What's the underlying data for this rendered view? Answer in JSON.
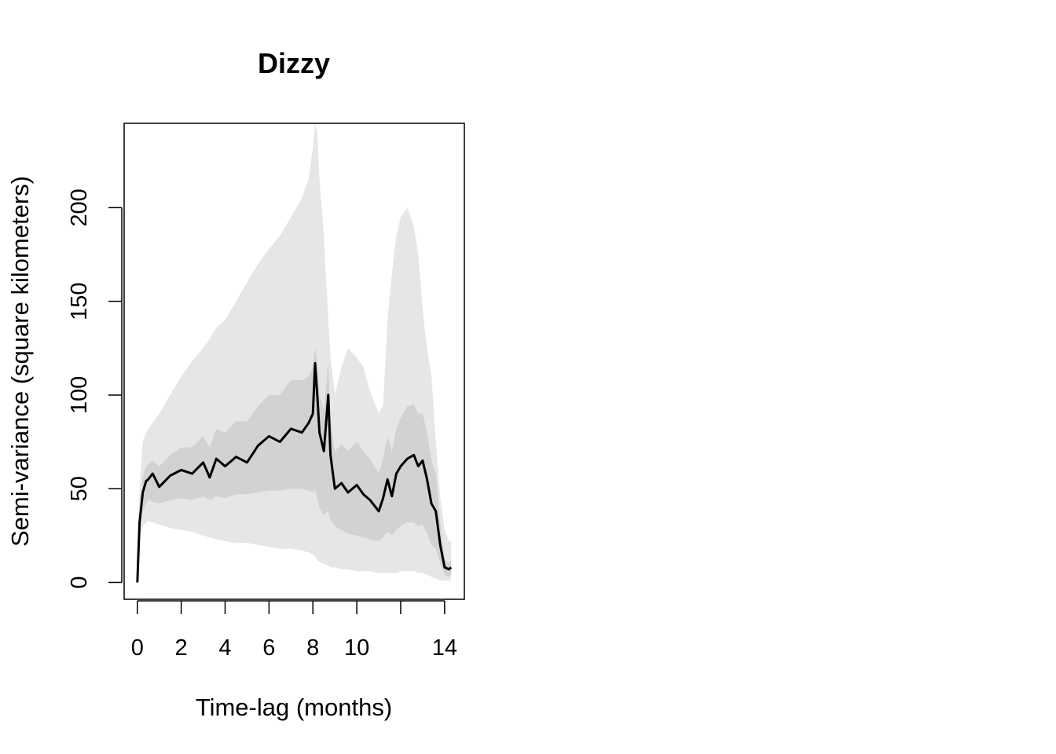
{
  "chart_data": {
    "type": "line",
    "title": "Dizzy",
    "xlabel": "Time-lag (months)",
    "ylabel": "Semi-variance (square kilometers)",
    "xlim": [
      -0.6,
      14.9
    ],
    "ylim": [
      -9,
      245
    ],
    "x_ticks": [
      0,
      2,
      4,
      6,
      8,
      10,
      12,
      14
    ],
    "x_tick_labels": [
      "0",
      "2",
      "4",
      "6",
      "8",
      "10",
      "",
      "14"
    ],
    "y_ticks": [
      0,
      50,
      100,
      150,
      200
    ],
    "y_tick_labels": [
      "0",
      "50",
      "100",
      "150",
      "200"
    ],
    "grid": false,
    "legend": "none",
    "colors": {
      "outer_band": "#e6e6e6",
      "inner_band": "#d2d2d2",
      "line": "#000000"
    },
    "x": [
      0,
      0.1,
      0.25,
      0.4,
      0.5,
      0.7,
      1.0,
      1.5,
      2.0,
      2.5,
      3.0,
      3.3,
      3.6,
      4.0,
      4.5,
      5.0,
      5.5,
      6.0,
      6.5,
      7.0,
      7.5,
      7.8,
      8.0,
      8.1,
      8.2,
      8.3,
      8.5,
      8.7,
      8.8,
      9.0,
      9.3,
      9.6,
      10.0,
      10.3,
      10.6,
      11.0,
      11.2,
      11.4,
      11.6,
      11.8,
      12.0,
      12.3,
      12.6,
      12.8,
      13.0,
      13.2,
      13.4,
      13.6,
      13.8,
      14.0,
      14.2,
      14.3
    ],
    "series": [
      {
        "role": "semi-variance",
        "values": [
          0,
          32,
          48,
          54,
          55,
          58,
          51,
          57,
          60,
          58,
          64,
          56,
          66,
          62,
          67,
          64,
          73,
          78,
          75,
          82,
          80,
          85,
          90,
          117,
          100,
          80,
          70,
          100,
          68,
          50,
          53,
          48,
          52,
          47,
          44,
          38,
          45,
          55,
          46,
          58,
          62,
          66,
          68,
          62,
          65,
          55,
          42,
          38,
          20,
          8,
          7,
          8
        ]
      }
    ],
    "bands": [
      {
        "role": "outer",
        "lower": [
          0,
          22,
          30,
          32,
          33,
          32,
          31,
          29,
          28,
          27,
          25,
          24,
          23,
          22,
          21,
          21,
          20,
          19,
          18,
          18,
          17,
          16,
          15,
          14,
          12,
          11,
          10,
          9,
          8,
          8,
          7,
          7,
          6,
          6,
          6,
          5,
          5,
          5,
          5,
          5,
          6,
          6,
          6,
          5,
          5,
          4,
          3,
          2,
          1,
          1,
          1,
          1
        ],
        "upper": [
          0,
          50,
          75,
          80,
          82,
          85,
          90,
          100,
          110,
          118,
          125,
          130,
          136,
          140,
          150,
          160,
          170,
          178,
          185,
          195,
          205,
          215,
          232,
          245,
          240,
          215,
          185,
          140,
          120,
          100,
          115,
          125,
          120,
          115,
          102,
          90,
          95,
          140,
          165,
          185,
          195,
          200,
          190,
          175,
          145,
          125,
          110,
          75,
          45,
          28,
          22,
          22
        ]
      },
      {
        "role": "inner",
        "lower": [
          0,
          28,
          38,
          42,
          44,
          43,
          42,
          44,
          45,
          44,
          46,
          44,
          46,
          45,
          47,
          47,
          48,
          49,
          49,
          50,
          50,
          49,
          48,
          50,
          45,
          40,
          36,
          38,
          33,
          30,
          28,
          26,
          25,
          24,
          23,
          22,
          24,
          27,
          25,
          28,
          30,
          32,
          32,
          30,
          31,
          26,
          20,
          18,
          10,
          4,
          3,
          4
        ],
        "upper": [
          0,
          36,
          56,
          62,
          63,
          65,
          62,
          68,
          72,
          72,
          78,
          72,
          82,
          80,
          86,
          86,
          94,
          100,
          100,
          108,
          108,
          110,
          115,
          125,
          118,
          100,
          92,
          118,
          88,
          70,
          74,
          70,
          75,
          70,
          66,
          58,
          66,
          78,
          70,
          82,
          88,
          94,
          95,
          90,
          90,
          80,
          65,
          58,
          32,
          12,
          10,
          12
        ]
      }
    ]
  }
}
